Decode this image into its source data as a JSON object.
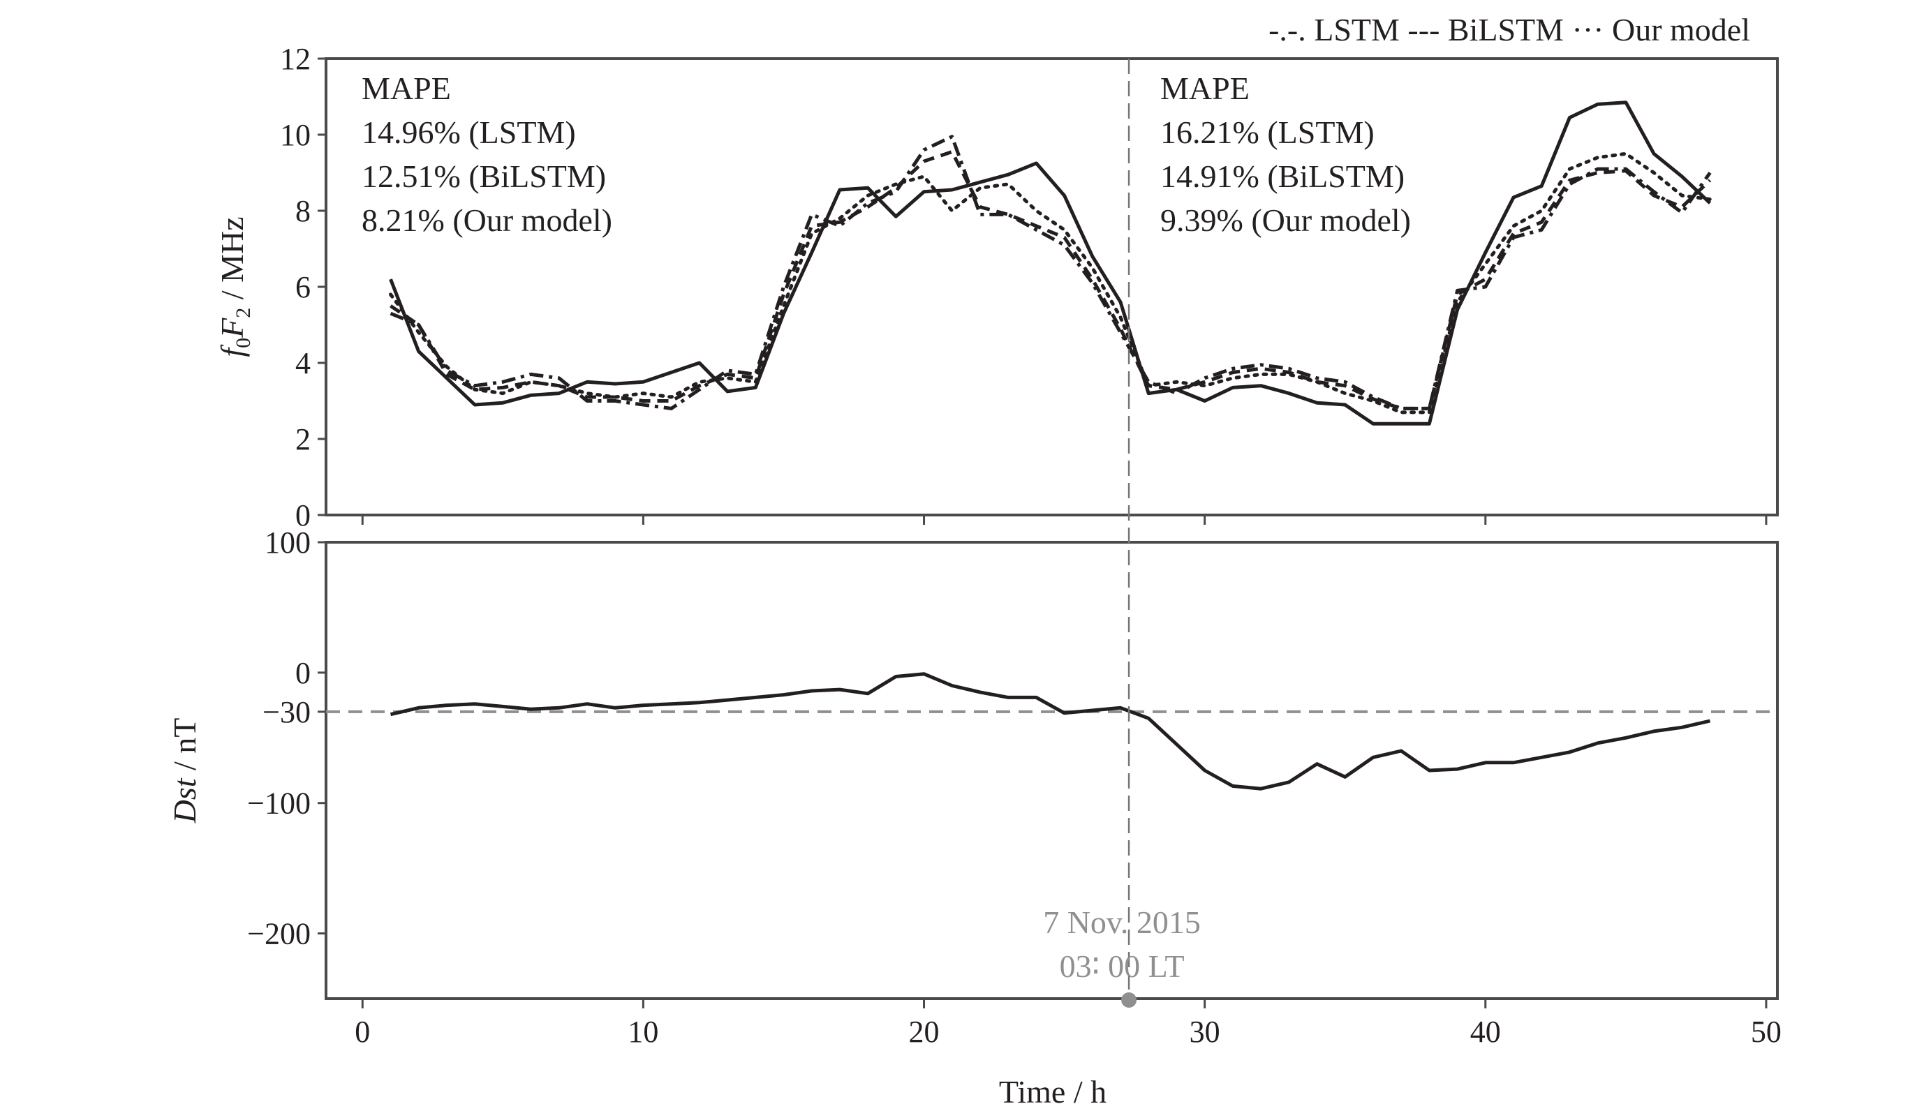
{
  "legend": {
    "text": "-.-. LSTM --- BiLSTM ··· Our model"
  },
  "event": {
    "date": "7 Nov. 2015",
    "time": "03∶ 00 LT",
    "x": 27.3
  },
  "colors": {
    "line": "#231f20",
    "reference": "#8f8f8f"
  },
  "chart_data": [
    {
      "type": "line",
      "title": "",
      "ylabel": {
        "f": "f",
        "sub0": "0",
        "F": "F",
        "sub2": "2",
        "unit": " / MHz"
      },
      "xlim": [
        -1.3,
        50.4
      ],
      "ylim": [
        0,
        12
      ],
      "yticks": [
        "0",
        "2",
        "4",
        "6",
        "8",
        "10",
        "12"
      ],
      "ytick_values": [
        0,
        2,
        4,
        6,
        8,
        10,
        12
      ],
      "xtick_values": [
        0,
        10,
        20,
        30,
        40,
        50
      ],
      "annotations": {
        "left": [
          "MAPE",
          "14.96% (LSTM)",
          "12.51% (BiLSTM)",
          "8.21% (Our model)"
        ],
        "right": [
          "MAPE",
          "16.21% (LSTM)",
          "14.91% (BiLSTM)",
          "9.39% (Our model)"
        ]
      },
      "x": [
        1,
        2,
        3,
        4,
        5,
        6,
        7,
        8,
        9,
        10,
        11,
        12,
        13,
        14,
        15,
        16,
        17,
        18,
        19,
        20,
        21,
        22,
        23,
        24,
        25,
        26,
        27,
        28,
        29,
        30,
        31,
        32,
        33,
        34,
        35,
        36,
        37,
        38,
        39,
        40,
        41,
        42,
        43,
        44,
        45,
        46,
        47,
        48
      ],
      "series": [
        {
          "name": "",
          "style": "solid",
          "values": [
            6.2,
            4.3,
            3.6,
            2.9,
            2.95,
            3.15,
            3.2,
            3.5,
            3.45,
            3.5,
            3.75,
            4.0,
            3.25,
            3.35,
            5.3,
            6.9,
            8.55,
            8.6,
            7.85,
            8.5,
            8.55,
            8.75,
            8.95,
            9.25,
            8.4,
            6.8,
            5.6,
            3.2,
            3.3,
            3.0,
            3.35,
            3.4,
            3.2,
            2.95,
            2.9,
            2.4,
            2.4,
            2.4,
            5.4,
            6.9,
            8.35,
            8.65,
            10.45,
            10.8,
            10.85,
            9.5,
            8.9,
            8.2
          ]
        },
        {
          "name": "LSTM",
          "style": "dashdot",
          "values": [
            5.3,
            5.0,
            3.8,
            3.4,
            3.5,
            3.7,
            3.6,
            3.0,
            3.0,
            2.9,
            2.8,
            3.3,
            3.8,
            3.7,
            6.0,
            7.9,
            7.6,
            8.2,
            8.5,
            9.6,
            9.95,
            7.9,
            7.9,
            7.5,
            7.1,
            6.1,
            4.8,
            3.5,
            3.2,
            3.6,
            3.85,
            3.95,
            3.85,
            3.6,
            3.5,
            3.1,
            2.8,
            2.8,
            5.9,
            6.0,
            7.3,
            7.5,
            8.7,
            9.1,
            9.1,
            8.5,
            7.95,
            9.0
          ]
        },
        {
          "name": "BiLSTM",
          "style": "dashed",
          "values": [
            5.5,
            5.0,
            3.7,
            3.3,
            3.35,
            3.5,
            3.4,
            3.1,
            3.1,
            3.0,
            3.0,
            3.4,
            3.7,
            3.6,
            5.8,
            7.6,
            7.7,
            8.1,
            8.6,
            9.3,
            9.55,
            8.1,
            7.9,
            7.6,
            7.3,
            6.2,
            4.9,
            3.4,
            3.3,
            3.5,
            3.75,
            3.85,
            3.75,
            3.5,
            3.4,
            3.05,
            2.8,
            2.8,
            5.8,
            6.2,
            7.4,
            7.7,
            8.8,
            9.0,
            9.05,
            8.4,
            8.1,
            8.8
          ]
        },
        {
          "name": "Our model",
          "style": "dotted",
          "values": [
            5.8,
            4.8,
            3.9,
            3.3,
            3.2,
            3.5,
            3.4,
            3.2,
            3.1,
            3.2,
            3.1,
            3.5,
            3.6,
            3.5,
            5.5,
            7.4,
            7.8,
            8.4,
            8.7,
            8.9,
            8.0,
            8.6,
            8.7,
            8.0,
            7.5,
            6.5,
            5.2,
            3.4,
            3.5,
            3.4,
            3.6,
            3.7,
            3.7,
            3.5,
            3.2,
            3.0,
            2.7,
            2.7,
            5.6,
            6.6,
            7.6,
            8.0,
            9.1,
            9.4,
            9.5,
            9.0,
            8.4,
            8.3
          ]
        }
      ]
    },
    {
      "type": "line",
      "title": "",
      "ylabel": {
        "var": "Dst",
        "unit": " / nT"
      },
      "xlabel": "Time / h",
      "xlim": [
        -1.3,
        50.4
      ],
      "ylim": [
        -250,
        100
      ],
      "yticks": [
        "100",
        "0",
        "−30",
        "−100",
        "−200"
      ],
      "ytick_values": [
        100,
        0,
        -30,
        -100,
        -200
      ],
      "xticks": [
        "0",
        "10",
        "20",
        "30",
        "40",
        "50"
      ],
      "xtick_values": [
        0,
        10,
        20,
        30,
        40,
        50
      ],
      "reference_y": -30,
      "x": [
        1,
        2,
        3,
        4,
        5,
        6,
        7,
        8,
        9,
        10,
        11,
        12,
        13,
        14,
        15,
        16,
        17,
        18,
        19,
        20,
        21,
        22,
        23,
        24,
        25,
        26,
        27,
        28,
        29,
        30,
        31,
        32,
        33,
        34,
        35,
        36,
        37,
        38,
        39,
        40,
        41,
        42,
        43,
        44,
        45,
        46,
        47,
        48
      ],
      "series": [
        {
          "name": "Dst",
          "style": "solid",
          "values": [
            -32,
            -27,
            -25,
            -24,
            -26,
            -28,
            -27,
            -24,
            -27,
            -25,
            -24,
            -23,
            -21,
            -19,
            -17,
            -14,
            -13,
            -16,
            -3,
            -1,
            -10,
            -15,
            -19,
            -19,
            -31,
            -29,
            -27,
            -35,
            -55,
            -75,
            -87,
            -89,
            -84,
            -70,
            -80,
            -65,
            -60,
            -75,
            -74,
            -69,
            -69,
            -65,
            -61,
            -54,
            -50,
            -45,
            -42,
            -37
          ]
        }
      ]
    }
  ]
}
